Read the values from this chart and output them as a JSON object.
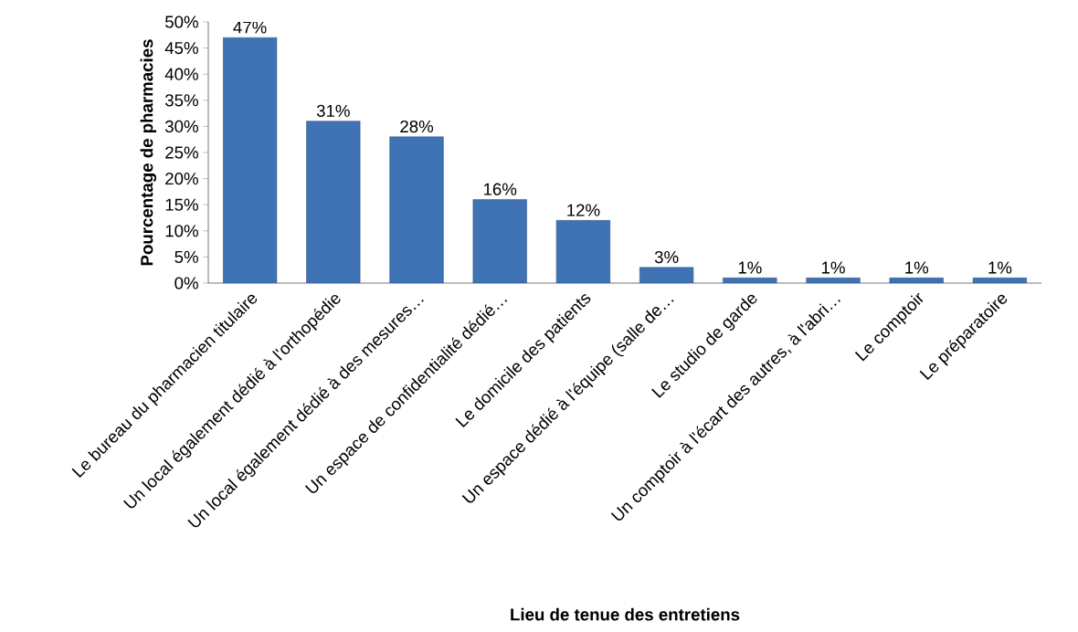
{
  "chart_data": {
    "type": "bar",
    "xlabel": "Lieu de tenue des entretiens",
    "ylabel": "Pourcentage de pharmacies",
    "categories": [
      "Le bureau du pharmacien titulaire",
      "Un local également dédié à l'orthopédie",
      "Un local également dédié à des mesures…",
      "Un espace de confidentialité dédié…",
      "Le domicile des patients",
      "Un espace dédié à l'équipe (salle de…",
      "Le studio de garde",
      "Un comptoir à l'écart des autres, à l'abri…",
      "Le comptoir",
      "Le préparatoire"
    ],
    "values": [
      47,
      31,
      28,
      16,
      12,
      3,
      1,
      1,
      1,
      1
    ],
    "value_labels": [
      "47%",
      "31%",
      "28%",
      "16%",
      "12%",
      "3%",
      "1%",
      "1%",
      "1%",
      "1%"
    ],
    "color": "#3f72b5",
    "ylim": [
      0,
      50
    ],
    "yticks": [
      {
        "value": 0,
        "label": "0%"
      },
      {
        "value": 5,
        "label": "5%"
      },
      {
        "value": 10,
        "label": "10%"
      },
      {
        "value": 15,
        "label": "15%"
      },
      {
        "value": 20,
        "label": "20%"
      },
      {
        "value": 25,
        "label": "25%"
      },
      {
        "value": 30,
        "label": "30%"
      },
      {
        "value": 35,
        "label": "35%"
      },
      {
        "value": 40,
        "label": "40%"
      },
      {
        "value": 45,
        "label": "45%"
      },
      {
        "value": 50,
        "label": "50%"
      }
    ],
    "grid": false
  }
}
